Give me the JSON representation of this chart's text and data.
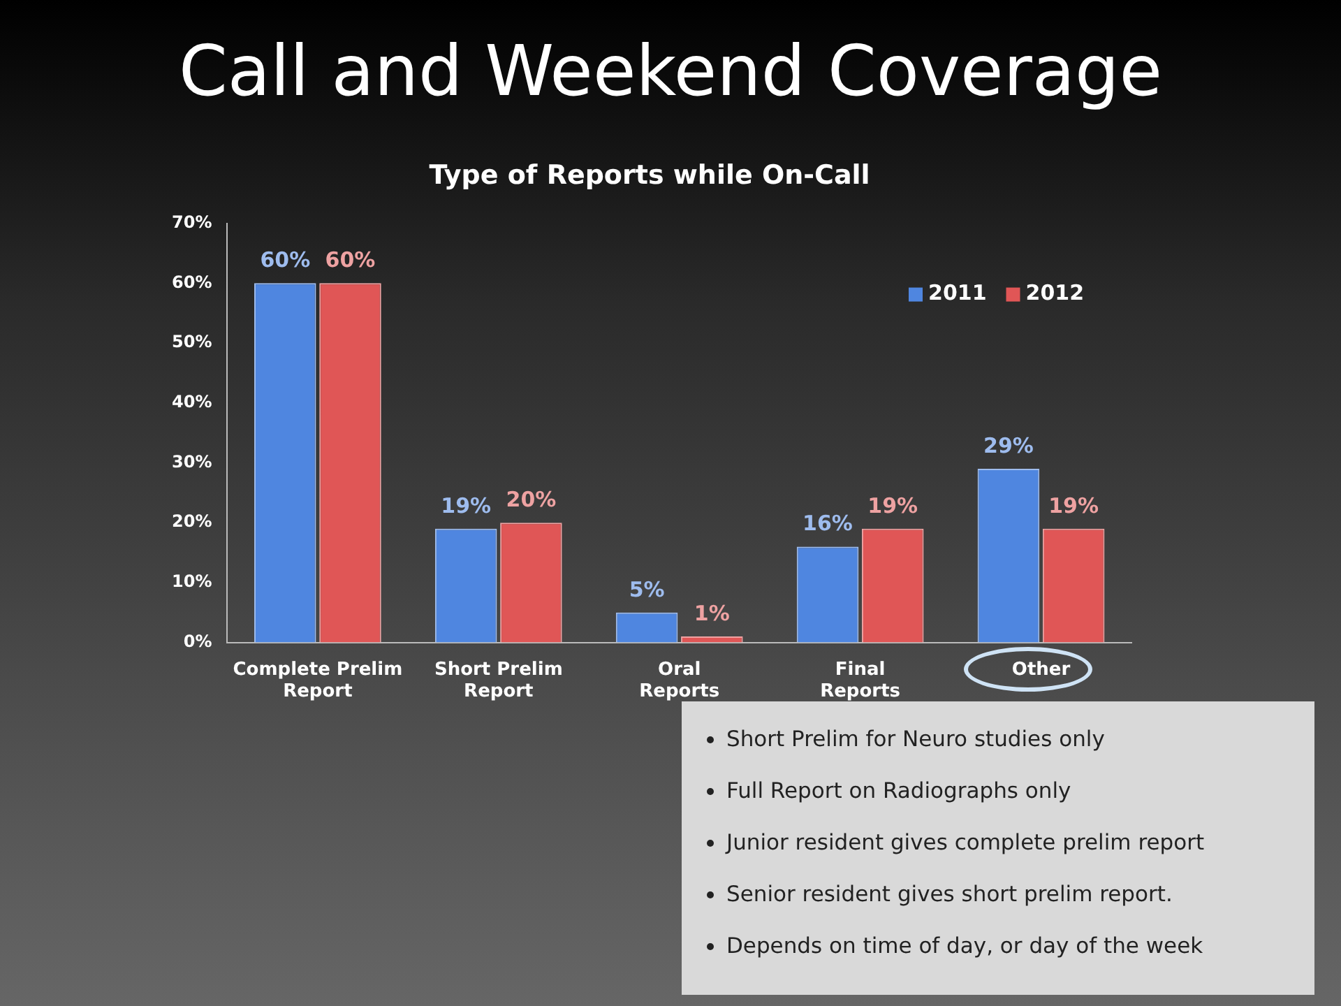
{
  "chart_data": {
    "type": "bar",
    "title": "Call and Weekend Coverage",
    "subtitle": "Type of Reports while On-Call",
    "categories": [
      "Complete Prelim Report",
      "Short Prelim Report",
      "Oral Reports",
      "Final Reports",
      "Other"
    ],
    "series": [
      {
        "name": "2011",
        "color": "#4f86e0",
        "values": [
          60,
          19,
          5,
          16,
          29
        ],
        "value_labels": [
          "60%",
          "19%",
          "5%",
          "16%",
          "29%"
        ]
      },
      {
        "name": "2012",
        "color": "#e05656",
        "values": [
          60,
          20,
          1,
          19,
          19
        ],
        "value_labels": [
          "60%",
          "20%",
          "1%",
          "19%",
          "19%"
        ]
      }
    ],
    "ylim": [
      0,
      70
    ],
    "yticks": [
      {
        "value": 0,
        "label": "0%"
      },
      {
        "value": 10,
        "label": "10%"
      },
      {
        "value": 20,
        "label": "20%"
      },
      {
        "value": 30,
        "label": "30%"
      },
      {
        "value": 40,
        "label": "40%"
      },
      {
        "value": 50,
        "label": "50%"
      },
      {
        "value": 60,
        "label": "60%"
      },
      {
        "value": 70,
        "label": "70%"
      }
    ],
    "grid": false,
    "legend": "top right",
    "annotations": [
      "Short Prelim for Neuro studies only",
      "Full Report on Radiographs only",
      "Junior resident gives complete prelim report",
      "Senior resident gives short prelim report.",
      "Depends on time of day, or day of the week"
    ]
  }
}
